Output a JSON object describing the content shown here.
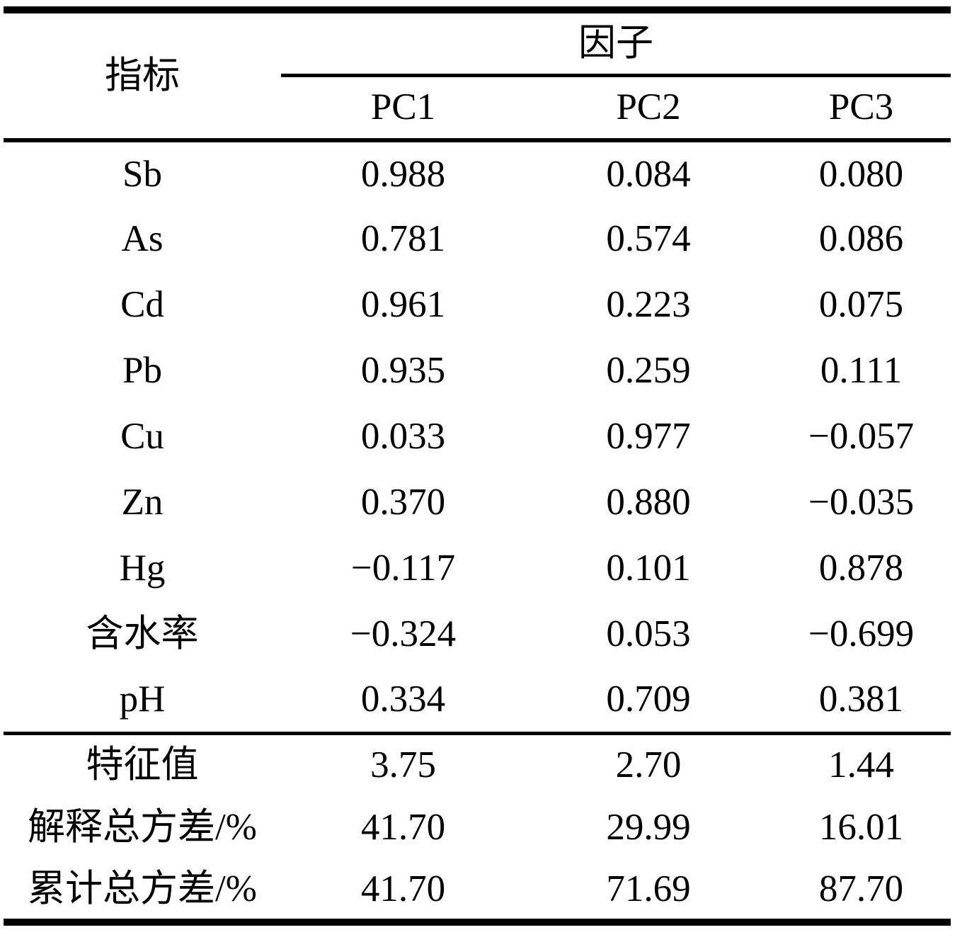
{
  "table": {
    "header": {
      "indicator_label": "指标",
      "factor_group_label": "因子",
      "pc_columns": [
        "PC1",
        "PC2",
        "PC3"
      ]
    },
    "rows": [
      {
        "indicator": "Sb",
        "pc1": "0.988",
        "pc2": "0.084",
        "pc3": "0.080"
      },
      {
        "indicator": "As",
        "pc1": "0.781",
        "pc2": "0.574",
        "pc3": "0.086"
      },
      {
        "indicator": "Cd",
        "pc1": "0.961",
        "pc2": "0.223",
        "pc3": "0.075"
      },
      {
        "indicator": "Pb",
        "pc1": "0.935",
        "pc2": "0.259",
        "pc3": "0.111"
      },
      {
        "indicator": "Cu",
        "pc1": "0.033",
        "pc2": "0.977",
        "pc3": "−0.057"
      },
      {
        "indicator": "Zn",
        "pc1": "0.370",
        "pc2": "0.880",
        "pc3": "−0.035"
      },
      {
        "indicator": "Hg",
        "pc1": "−0.117",
        "pc2": "0.101",
        "pc3": "0.878"
      },
      {
        "indicator": "含水率",
        "pc1": "−0.324",
        "pc2": "0.053",
        "pc3": "−0.699"
      },
      {
        "indicator": "pH",
        "pc1": "0.334",
        "pc2": "0.709",
        "pc3": "0.381"
      }
    ],
    "summary_rows": [
      {
        "indicator": "特征值",
        "pc1": "3.75",
        "pc2": "2.70",
        "pc3": "1.44"
      },
      {
        "indicator": "解释总方差/%",
        "pc1": "41.70",
        "pc2": "29.99",
        "pc3": "16.01"
      },
      {
        "indicator": "累计总方差/%",
        "pc1": "41.70",
        "pc2": "71.69",
        "pc3": "87.70"
      }
    ],
    "colors": {
      "text": "#000000",
      "rule": "#000000",
      "background": "#ffffff"
    }
  }
}
